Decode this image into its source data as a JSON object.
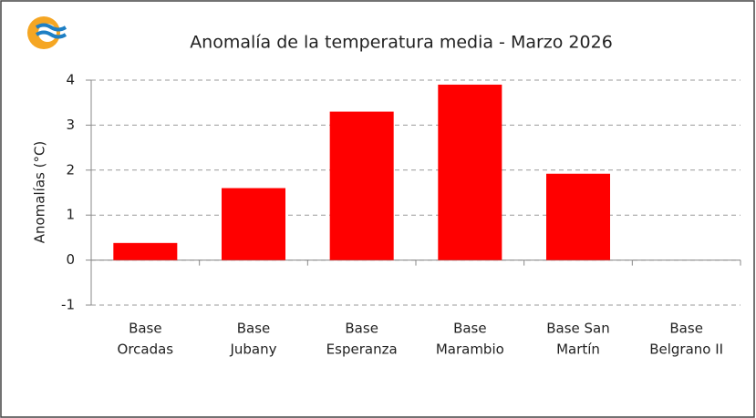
{
  "chart_data": {
    "type": "bar",
    "title": "Anomalía de la temperatura media - Marzo 2026",
    "y_label": "Anomalías (°C)",
    "categories": [
      [
        "Base",
        "Orcadas"
      ],
      [
        "Base",
        "Jubany"
      ],
      [
        "Base",
        "Esperanza"
      ],
      [
        "Base",
        "Marambio"
      ],
      [
        "Base San",
        "Martín"
      ],
      [
        "Base",
        "Belgrano II"
      ]
    ],
    "values": [
      0.38,
      1.6,
      3.3,
      3.9,
      1.92,
      null
    ],
    "color": "#ff0000",
    "ylim": [
      -1,
      4
    ],
    "yticks": [
      -1,
      0,
      1,
      2,
      3,
      4
    ],
    "grid": true
  }
}
